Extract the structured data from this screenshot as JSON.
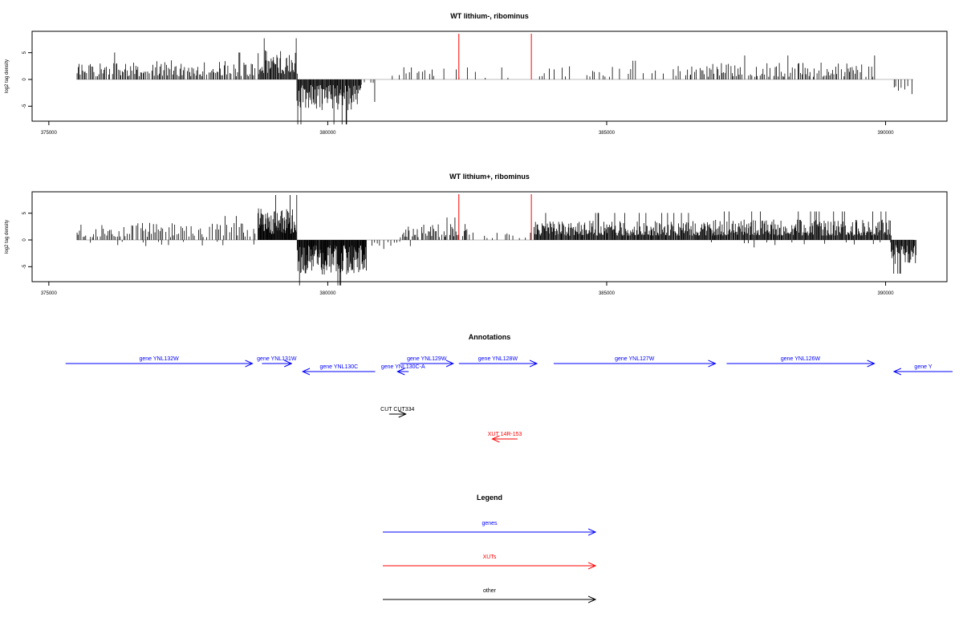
{
  "colors": {
    "genes": "#0000ff",
    "xuts": "#ff0000",
    "other": "#000000",
    "bars": "#000000",
    "baseline": "#bebebe",
    "highlight": "#ff0000"
  },
  "chart_data": [
    {
      "type": "bar",
      "title": "WT lithium-, ribominus",
      "ylabel": "log2 tag density",
      "xlim": [
        374700,
        391100
      ],
      "ylim": [
        -7.8,
        9
      ],
      "x_ticks": [
        375000,
        380000,
        385000,
        390000
      ],
      "y_ticks": [
        -5,
        0,
        5
      ],
      "x_tick_labels": [
        "375000",
        "380000",
        "385000",
        "390000"
      ],
      "y_tick_labels": [
        "-5",
        "0",
        "5"
      ],
      "highlight_x": [
        382350,
        383650
      ],
      "segments": [
        {
          "x_start": 375500,
          "x_end": 378700,
          "min": 0.6,
          "max": 3.6,
          "sign": 1,
          "step": 22,
          "fill": 0.92
        },
        {
          "x_start": 378750,
          "x_end": 379450,
          "min": 1.0,
          "max": 5.5,
          "sign": 1,
          "step": 14,
          "fill": 1.0
        },
        {
          "x_start": 379450,
          "x_end": 380600,
          "min": 1.0,
          "max": 6.0,
          "sign": -1,
          "step": 12,
          "fill": 1.0
        },
        {
          "x_start": 380600,
          "x_end": 380900,
          "min": 0.5,
          "max": 3.0,
          "sign": -1,
          "step": 30,
          "fill": 0.7
        },
        {
          "x_start": 381100,
          "x_end": 382400,
          "min": 0.4,
          "max": 2.5,
          "sign": 1,
          "step": 45,
          "fill": 0.55
        },
        {
          "x_start": 382400,
          "x_end": 383800,
          "min": 0.3,
          "max": 1.6,
          "sign": 1,
          "step": 90,
          "fill": 0.35
        },
        {
          "x_start": 383800,
          "x_end": 386500,
          "min": 0.4,
          "max": 2.5,
          "sign": 1,
          "step": 45,
          "fill": 0.6
        },
        {
          "x_start": 386500,
          "x_end": 389800,
          "min": 0.5,
          "max": 3.2,
          "sign": 1,
          "step": 25,
          "fill": 0.85
        },
        {
          "x_start": 390150,
          "x_end": 390500,
          "min": 0.8,
          "max": 2.8,
          "sign": -1,
          "step": 40,
          "fill": 0.6
        }
      ]
    },
    {
      "type": "bar",
      "title": "WT lithium+, ribominus",
      "ylabel": "log2 tag density",
      "xlim": [
        374700,
        391100
      ],
      "ylim": [
        -7.8,
        9
      ],
      "x_ticks": [
        375000,
        380000,
        385000,
        390000
      ],
      "y_ticks": [
        -5,
        0,
        5
      ],
      "x_tick_labels": [
        "375000",
        "380000",
        "385000",
        "390000"
      ],
      "y_tick_labels": [
        "-5",
        "0",
        "5"
      ],
      "highlight_x": [
        382350,
        383650
      ],
      "segments": [
        {
          "x_start": 375500,
          "x_end": 378700,
          "min": 0.5,
          "max": 3.2,
          "sign": 1,
          "step": 28,
          "fill": 0.8
        },
        {
          "x_start": 375500,
          "x_end": 378700,
          "min": 0.3,
          "max": 1.2,
          "sign": -1,
          "step": 90,
          "fill": 0.3
        },
        {
          "x_start": 378750,
          "x_end": 379450,
          "min": 1.0,
          "max": 6.0,
          "sign": 1,
          "step": 9,
          "fill": 1.0
        },
        {
          "x_start": 379450,
          "x_end": 380700,
          "min": 1.0,
          "max": 6.5,
          "sign": -1,
          "step": 9,
          "fill": 1.0
        },
        {
          "x_start": 380800,
          "x_end": 381500,
          "min": 0.3,
          "max": 1.2,
          "sign": -1,
          "step": 40,
          "fill": 0.5
        },
        {
          "x_start": 381300,
          "x_end": 382500,
          "min": 0.5,
          "max": 3.0,
          "sign": 1,
          "step": 20,
          "fill": 0.85
        },
        {
          "x_start": 382500,
          "x_end": 383700,
          "min": 0.3,
          "max": 1.5,
          "sign": 1,
          "step": 45,
          "fill": 0.5
        },
        {
          "x_start": 383700,
          "x_end": 386900,
          "min": 0.8,
          "max": 3.6,
          "sign": 1,
          "step": 13,
          "fill": 1.0
        },
        {
          "x_start": 386900,
          "x_end": 390100,
          "min": 0.8,
          "max": 3.8,
          "sign": 1,
          "step": 13,
          "fill": 1.0
        },
        {
          "x_start": 386900,
          "x_end": 390100,
          "min": 0.3,
          "max": 1.0,
          "sign": -1,
          "step": 110,
          "fill": 0.3
        },
        {
          "x_start": 390100,
          "x_end": 390550,
          "min": 1.0,
          "max": 4.5,
          "sign": -1,
          "step": 12,
          "fill": 1.0
        }
      ]
    }
  ],
  "annotations": {
    "title": "Annotations",
    "genes": [
      {
        "label": "gene YNL132W",
        "start": 375300,
        "end": 378650,
        "strand": "+",
        "row": 0
      },
      {
        "label": "gene YNL131W",
        "start": 378820,
        "end": 379350,
        "strand": "+",
        "row": 0
      },
      {
        "label": "gene YNL130C",
        "start": 379550,
        "end": 380850,
        "strand": "-",
        "row": 1
      },
      {
        "label": "gene YNL129W",
        "start": 381300,
        "end": 382250,
        "strand": "+",
        "row": 0
      },
      {
        "label": "gene YNL130C-A",
        "start": 381250,
        "end": 381450,
        "strand": "-",
        "row": 1
      },
      {
        "label": "gene YNL128W",
        "start": 382350,
        "end": 383750,
        "strand": "+",
        "row": 0
      },
      {
        "label": "gene YNL127W",
        "start": 384050,
        "end": 386950,
        "strand": "+",
        "row": 0
      },
      {
        "label": "gene YNL126W",
        "start": 387150,
        "end": 389800,
        "strand": "+",
        "row": 0
      },
      {
        "label": "gene Y",
        "start": 390150,
        "end": 391200,
        "strand": "-",
        "row": 1
      }
    ],
    "other": [
      {
        "label": "CUT CUT334",
        "start": 381100,
        "end": 381400,
        "strand": "+"
      }
    ],
    "xuts": [
      {
        "label": "XUT 14R-153",
        "start": 382950,
        "end": 383400,
        "strand": "-"
      }
    ]
  },
  "legend": {
    "title": "Legend",
    "items": [
      {
        "label": "genes",
        "kind": "genes"
      },
      {
        "label": "XUTs",
        "kind": "xuts"
      },
      {
        "label": "other",
        "kind": "other"
      }
    ]
  }
}
